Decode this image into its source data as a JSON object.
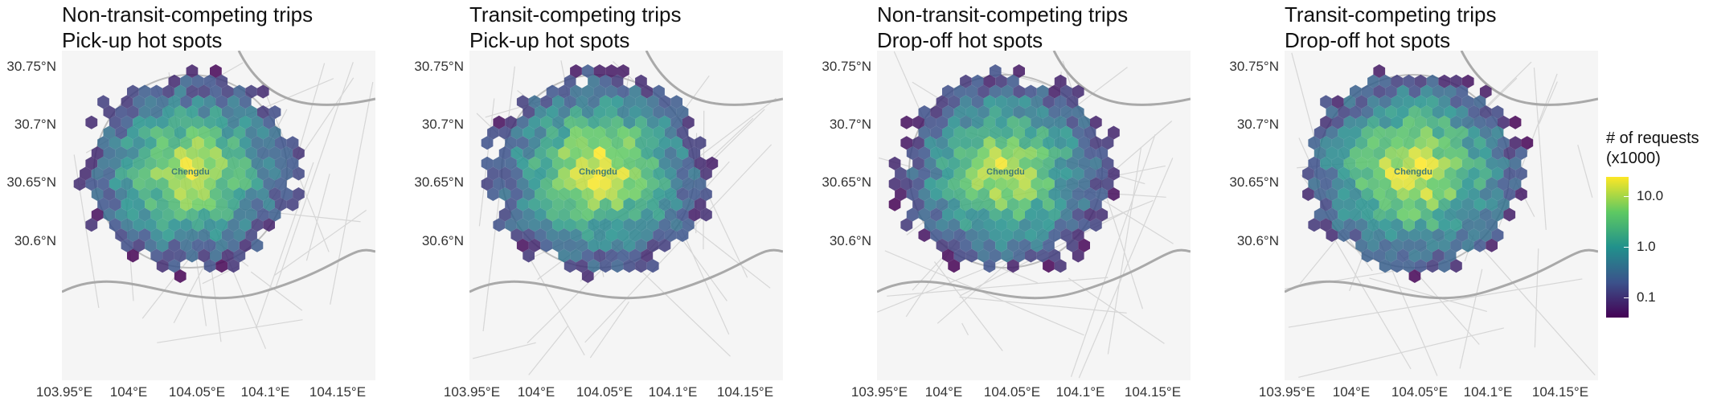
{
  "panels": [
    {
      "title_line1": "Non-transit-competing trips",
      "title_line2": "Pick-up hot spots"
    },
    {
      "title_line1": "Transit-competing trips",
      "title_line2": "Pick-up hot spots"
    },
    {
      "title_line1": "Non-transit-competing trips",
      "title_line2": "Drop-off hot spots"
    },
    {
      "title_line1": "Transit-competing trips",
      "title_line2": "Drop-off hot spots"
    }
  ],
  "y_ticks": [
    "30.75°N",
    "30.7°N",
    "30.65°N",
    "30.6°N"
  ],
  "x_ticks": [
    "103.95°E",
    "104°E",
    "104.05°E",
    "104.1°E",
    "104.15°E"
  ],
  "city_label": "Chengdu",
  "legend": {
    "title_line1": "# of requests",
    "title_line2": "(x1000)",
    "ticks": [
      "10.0",
      "1.0",
      "0.1"
    ],
    "colors": [
      "#440154",
      "#3b528b",
      "#21918c",
      "#5ec962",
      "#fde725"
    ]
  }
}
